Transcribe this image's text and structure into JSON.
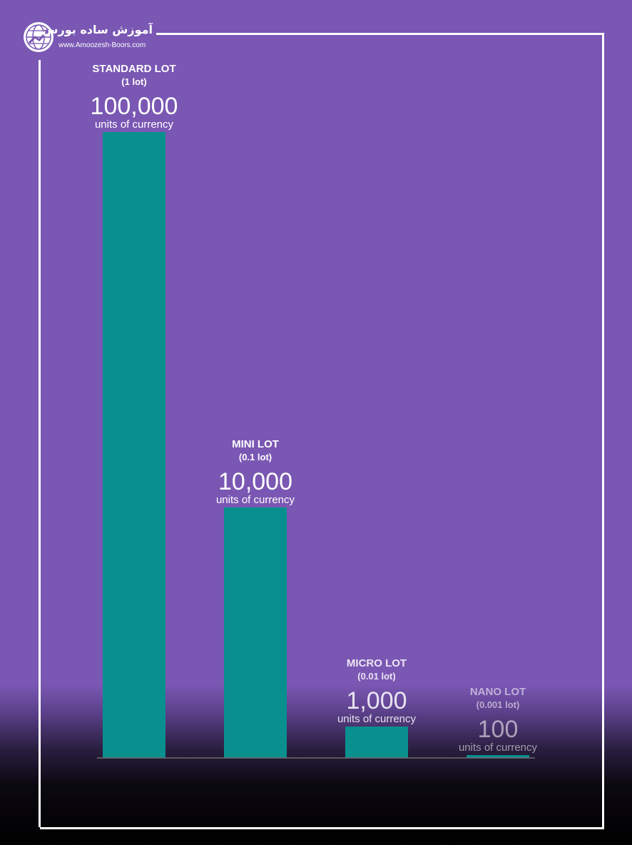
{
  "branding": {
    "title": "آموزش ساده بورس",
    "url": "www.Amoozesh-Boors.com",
    "logo_icon": "globe-chart-icon"
  },
  "colors": {
    "background": "#7a57b3",
    "bar_top": "#00ffff",
    "bar_bottom": "#00a8a8",
    "frame": "#ffffff"
  },
  "chart_data": {
    "type": "bar",
    "categories": [
      "STANDARD LOT",
      "MINI LOT",
      "MICRO LOT",
      "NANO LOT"
    ],
    "sublabels": [
      "(1 lot)",
      "(0.1 lot)",
      "(0.01 lot)",
      "(0.001 lot)"
    ],
    "value_labels": [
      "100,000",
      "10,000",
      "1,000",
      "100"
    ],
    "unit_label": "units of currency",
    "values": [
      100000,
      10000,
      1000,
      100
    ],
    "ylim": [
      0,
      100000
    ],
    "grid": false,
    "title": "",
    "xlabel": "",
    "ylabel": ""
  }
}
